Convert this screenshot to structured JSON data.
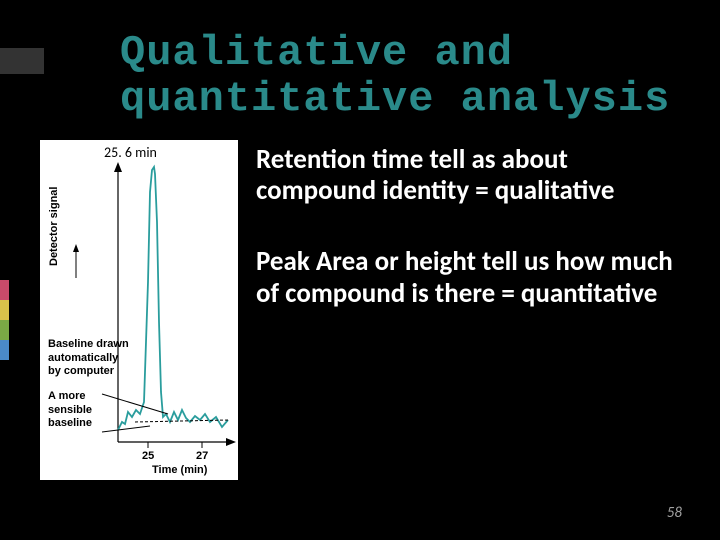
{
  "title": {
    "line1": "Qualitative and",
    "line2": "quantitative analysis",
    "color": "#2a8a8a",
    "font_family": "Courier New",
    "font_size": 42
  },
  "background_color": "#000000",
  "chart": {
    "type": "line",
    "retention_time_label": "25. 6 min",
    "y_axis_label": "Detector signal",
    "x_axis_label": "Time (min)",
    "x_ticks": [
      "25",
      "27"
    ],
    "annotation_baseline": "Baseline drawn\nautomatically\nby computer",
    "annotation_sensible": "A more\nsensible\nbaseline",
    "peak_color": "#2a9d9d",
    "axis_color": "#000000",
    "background_color": "#ffffff",
    "line_width": 1.5,
    "peak_points": [
      [
        78,
        268
      ],
      [
        82,
        260
      ],
      [
        85,
        262
      ],
      [
        88,
        250
      ],
      [
        92,
        255
      ],
      [
        96,
        248
      ],
      [
        100,
        252
      ],
      [
        104,
        240
      ],
      [
        108,
        120
      ],
      [
        110,
        30
      ],
      [
        112,
        8
      ],
      [
        114,
        5
      ],
      [
        115,
        12
      ],
      [
        117,
        60
      ],
      [
        119,
        160
      ],
      [
        121,
        230
      ],
      [
        123,
        255
      ],
      [
        126,
        252
      ],
      [
        130,
        260
      ],
      [
        134,
        250
      ],
      [
        138,
        258
      ],
      [
        142,
        248
      ],
      [
        146,
        256
      ],
      [
        150,
        260
      ],
      [
        155,
        254
      ],
      [
        160,
        258
      ],
      [
        165,
        252
      ],
      [
        170,
        260
      ],
      [
        176,
        255
      ],
      [
        182,
        265
      ],
      [
        188,
        258
      ]
    ],
    "baseline_dash": [
      [
        95,
        260
      ],
      [
        188,
        258
      ]
    ],
    "sensible_arrow_from": [
      62,
      270
    ],
    "sensible_arrow_to": [
      110,
      264
    ],
    "baseline_arrow_from": [
      62,
      232
    ],
    "baseline_arrow_to": [
      128,
      252
    ]
  },
  "paragraphs": {
    "p1": "Retention time tell as about compound identity = qualitative",
    "p2": "Peak Area or height tell us how much of compound is there = quantitative",
    "text_color": "#ffffff",
    "font_size": 27,
    "font_weight": "bold"
  },
  "stripes": [
    "#c94a6a",
    "#d9c14a",
    "#7aa845",
    "#4a8ac9"
  ],
  "page_number": "58"
}
